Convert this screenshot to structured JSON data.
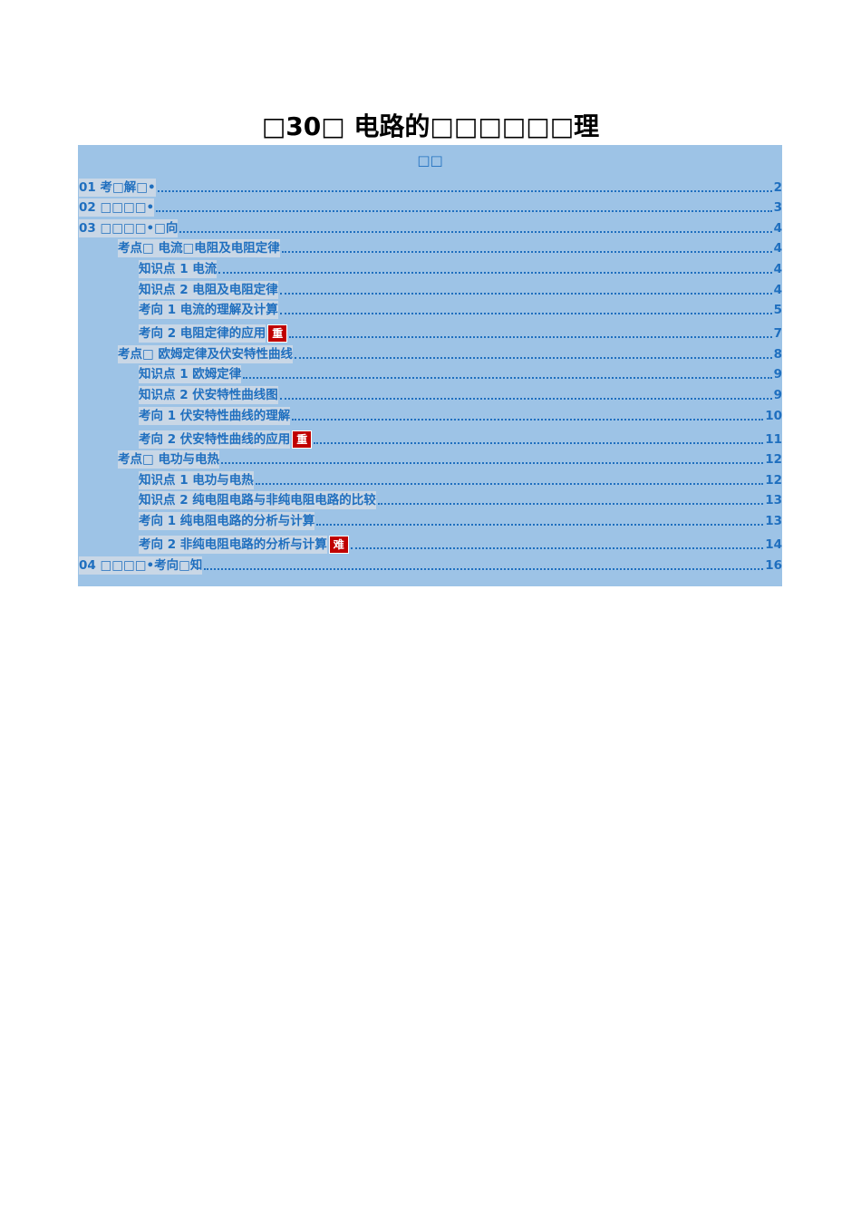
{
  "header": {
    "title": "□30□ 电路的□□□□□□理"
  },
  "toc": {
    "heading": "□□",
    "entries": [
      {
        "level": 0,
        "label": "01 考□解□•",
        "page": "2"
      },
      {
        "level": 0,
        "label": "02 □□□□•",
        "page": "3"
      },
      {
        "level": 0,
        "label": "03 □□□□•□向",
        "page": "4"
      },
      {
        "level": 1,
        "label": "考点□ 电流□电阻及电阻定律",
        "page": "4"
      },
      {
        "level": 2,
        "label": "知识点 1  电流",
        "page": "4"
      },
      {
        "level": 2,
        "label": "知识点 2  电阻及电阻定律",
        "page": "4"
      },
      {
        "level": 2,
        "label": "考向 1 电流的理解及计算",
        "page": "5"
      },
      {
        "level": 2,
        "label": "考向 2 电阻定律的应用",
        "badge": "重",
        "page": "7"
      },
      {
        "level": 1,
        "label": "考点□  欧姆定律及伏安特性曲线",
        "page": "8"
      },
      {
        "level": 2,
        "label": "知识点 1 欧姆定律",
        "page": "9"
      },
      {
        "level": 2,
        "label": "知识点 2 伏安特性曲线图",
        "page": "9"
      },
      {
        "level": 2,
        "label": "考向 1 伏安特性曲线的理解",
        "page": "10"
      },
      {
        "level": 2,
        "label": "考向 2 伏安特性曲线的应用",
        "badge": "重",
        "page": "11"
      },
      {
        "level": 1,
        "label": "考点□  电功与电热",
        "page": "12"
      },
      {
        "level": 2,
        "label": "知识点 1 电功与电热",
        "page": "12"
      },
      {
        "level": 2,
        "label": "知识点 2 纯电阻电路与非纯电阻电路的比较",
        "page": "13"
      },
      {
        "level": 2,
        "label": "考向 1 纯电阻电路的分析与计算",
        "page": "13"
      },
      {
        "level": 2,
        "label": "考向 2 非纯电阻电路的分析与计算",
        "badge": "难",
        "page": "14"
      },
      {
        "level": 0,
        "label": "04 □□□□•考向□知",
        "page": "16"
      }
    ]
  }
}
